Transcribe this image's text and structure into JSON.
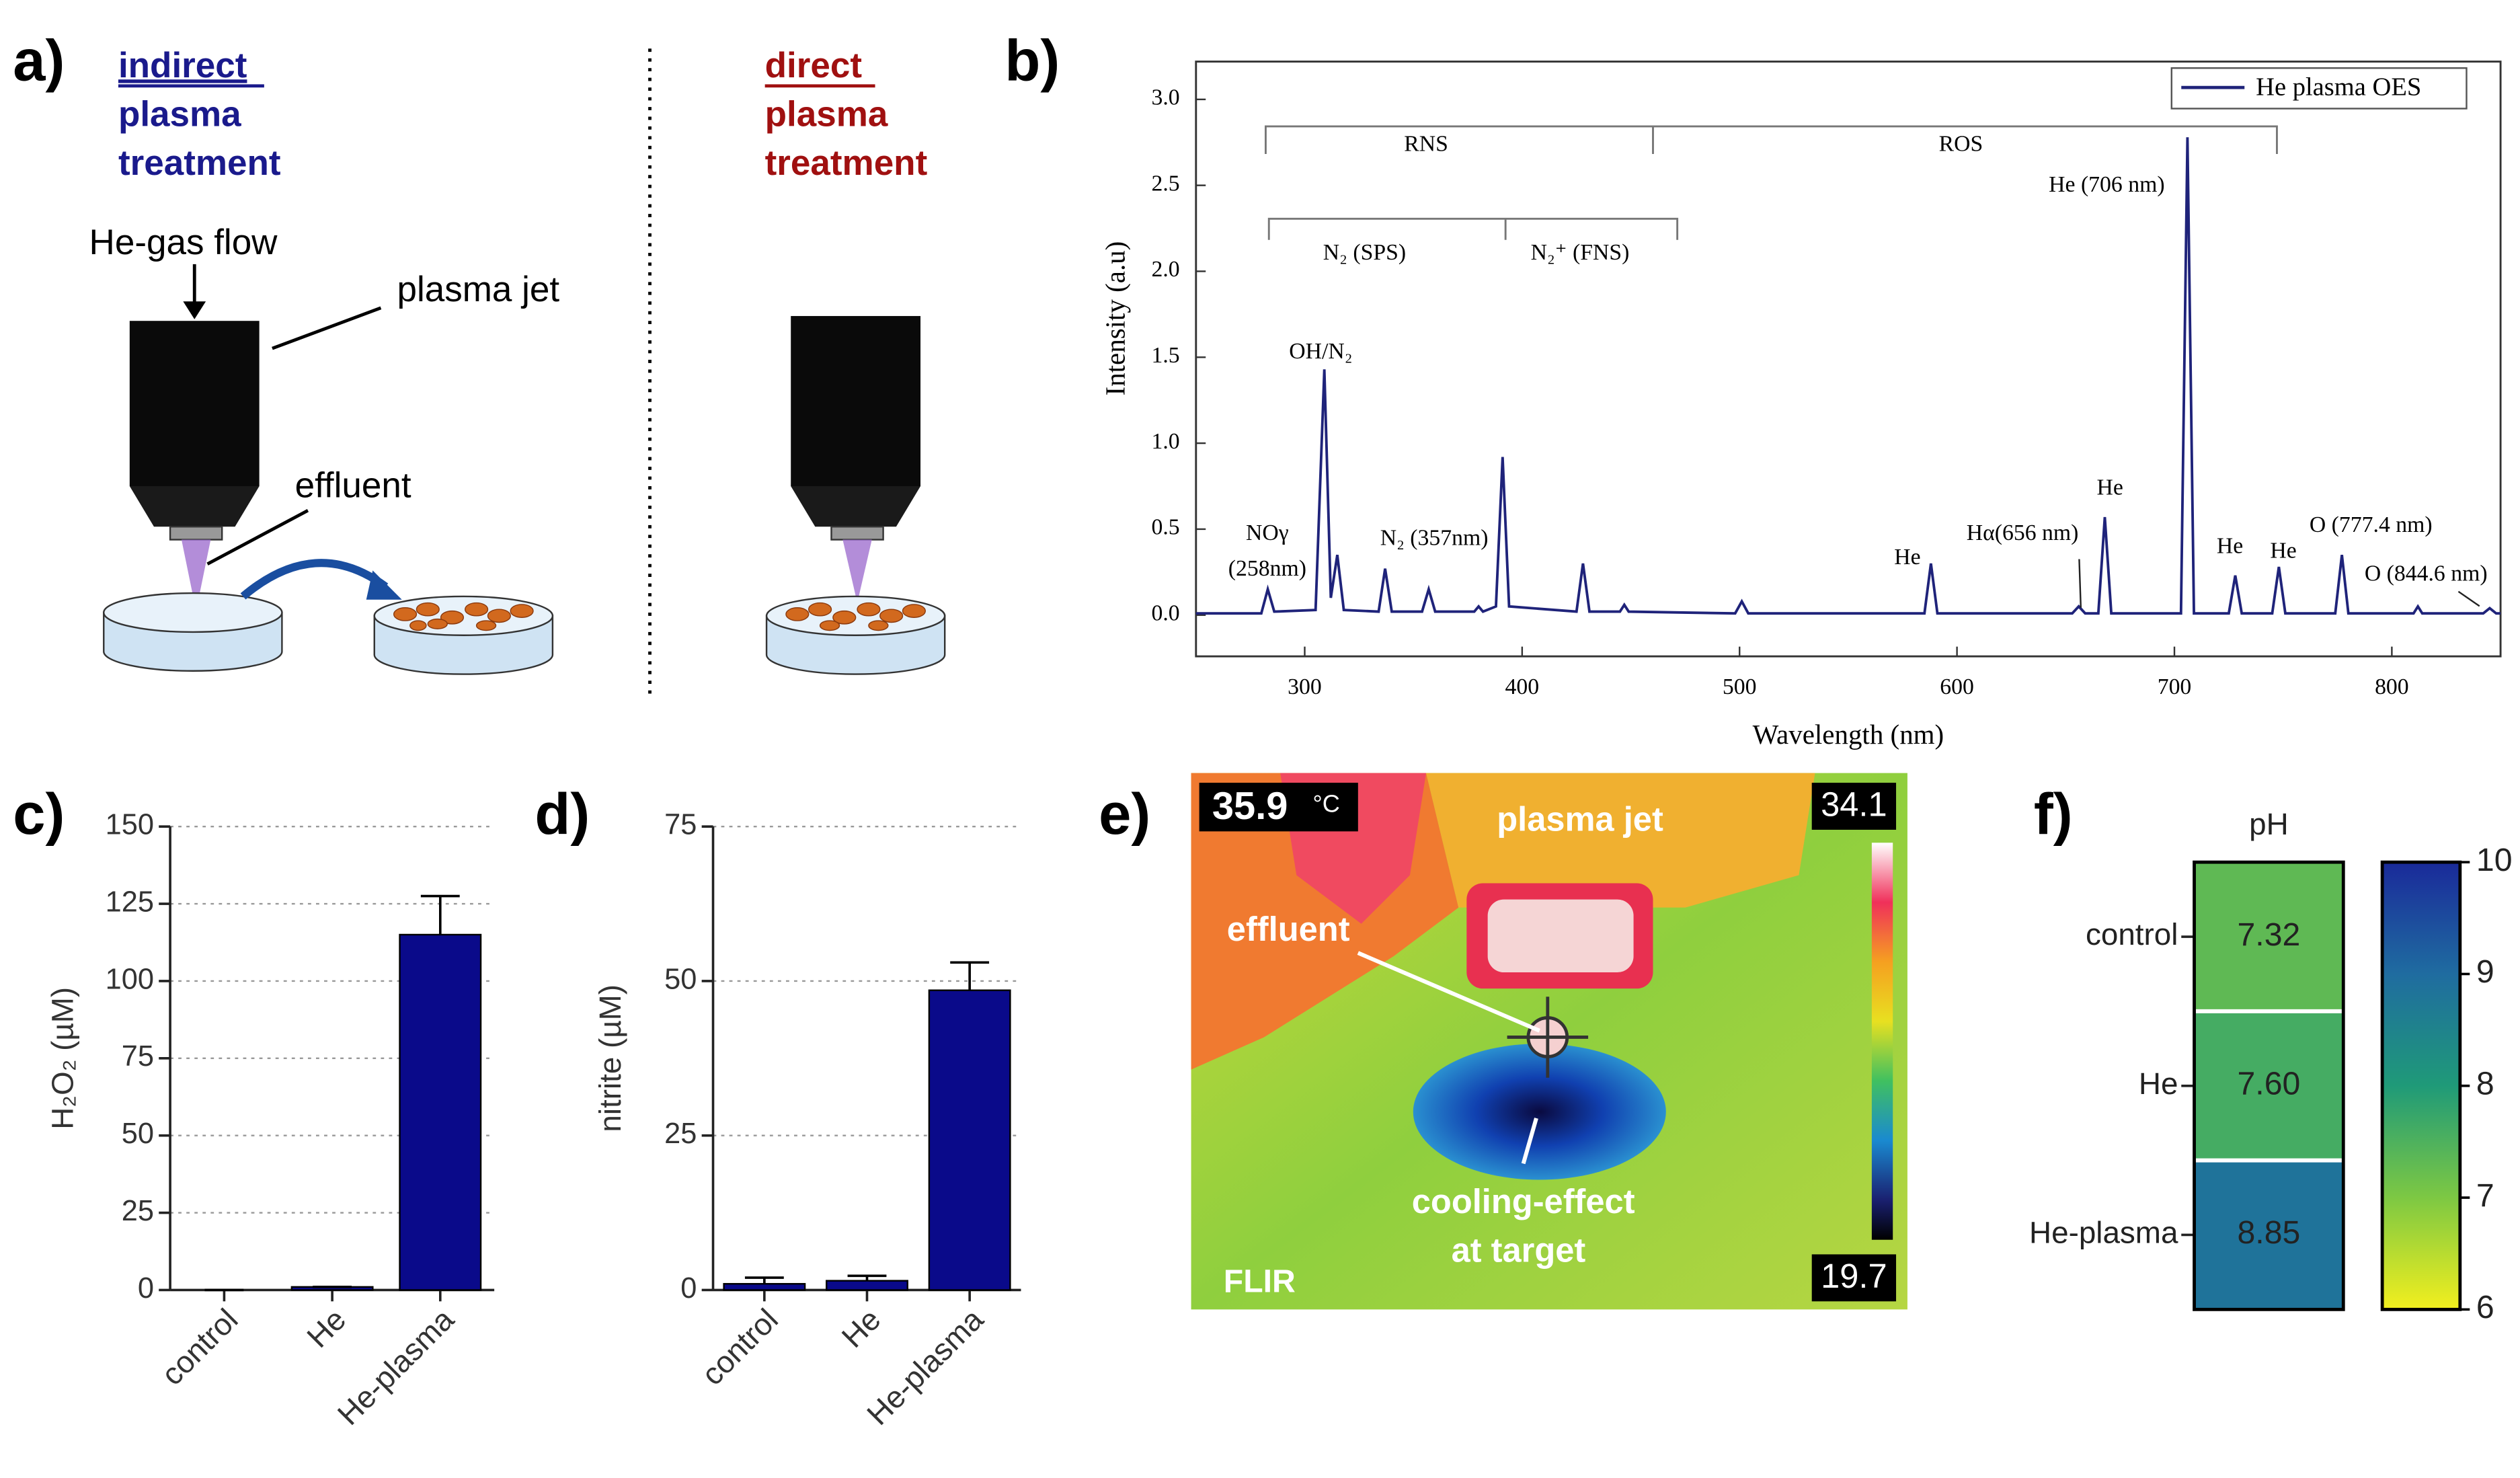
{
  "panel_labels": [
    "a)",
    "b)",
    "c)",
    "d)",
    "e)",
    "f)"
  ],
  "diagram": {
    "indirect": [
      "indirect",
      "plasma",
      "treatment"
    ],
    "direct": [
      "direct",
      "plasma",
      "treatment"
    ],
    "gas_flow": "He-gas flow",
    "jet": "plasma jet",
    "effluent": "effluent"
  },
  "thermal": {
    "temperature": "35.9",
    "unit": "°C",
    "jet": "plasma jet",
    "scale_max": "34.1",
    "scale_min": "19.7",
    "effluent": "effluent",
    "cooling": [
      "cooling-effect",
      "at target"
    ],
    "brand": "FLIR"
  },
  "chart_data": [
    {
      "type": "line",
      "xlabel": "Wavelength (nm)",
      "ylabel": "Intensity (a.u)",
      "legend": "top-right",
      "xlim": [
        250,
        850
      ],
      "ylim": [
        -0.24,
        3.22
      ],
      "xticks": [
        300,
        400,
        500,
        600,
        700,
        800
      ],
      "yticks": [
        {
          "value": 0,
          "label": "0.0"
        },
        0.5,
        {
          "value": 1,
          "label": "1.0"
        },
        1.5,
        {
          "value": 2,
          "label": "2.0"
        },
        2.5,
        {
          "value": 3,
          "label": "3.0"
        }
      ],
      "x": [
        250,
        280,
        283,
        286,
        305,
        309,
        312,
        315,
        318,
        334,
        337,
        340,
        354,
        357,
        360,
        378,
        380,
        382,
        388,
        391,
        394,
        425,
        428,
        431,
        445,
        447,
        449,
        498,
        501,
        504,
        585,
        588,
        591,
        653,
        656,
        659,
        665,
        668,
        671,
        703,
        706,
        709,
        725,
        728,
        731,
        745,
        748,
        751,
        774,
        777,
        780,
        810,
        812,
        814,
        842,
        845,
        848,
        850
      ],
      "series": [
        {
          "name": "He plasma OES",
          "color": "#1f237a",
          "values": [
            0.01,
            0.01,
            0.15,
            0.02,
            0.03,
            1.43,
            0.1,
            0.35,
            0.03,
            0.02,
            0.27,
            0.02,
            0.02,
            0.15,
            0.02,
            0.02,
            0.05,
            0.02,
            0.05,
            0.92,
            0.05,
            0.02,
            0.3,
            0.02,
            0.02,
            0.06,
            0.02,
            0.01,
            0.08,
            0.01,
            0.01,
            0.3,
            0.01,
            0.01,
            0.05,
            0.01,
            0.01,
            0.57,
            0.01,
            0.01,
            2.78,
            0.01,
            0.01,
            0.23,
            0.01,
            0.01,
            0.28,
            0.01,
            0.01,
            0.35,
            0.01,
            0.01,
            0.05,
            0.01,
            0.01,
            0.04,
            0.01,
            0.01
          ]
        }
      ],
      "annotations": [
        "NOγ",
        "(258nm)",
        "OH/N₂",
        "N₂ (357nm)",
        "He",
        "Hα(656 nm)",
        "He (706 nm)",
        "He",
        "He",
        "He",
        "O (777.4 nm)",
        "O (844.6 nm)"
      ],
      "brackets": [
        "RNS",
        "ROS",
        "N₂ (SPS)",
        "N₂⁺ (FNS)"
      ]
    },
    {
      "type": "bar",
      "ylabel": "H₂O₂ (µM)",
      "categories": [
        "control",
        "He",
        "He-plasma"
      ],
      "values": [
        0,
        1,
        115
      ],
      "errors": [
        0,
        0,
        12.5
      ],
      "color": "#0a0a8a",
      "ylim": [
        0,
        150
      ],
      "yticks": [
        0,
        25,
        50,
        75,
        100,
        125,
        150
      ],
      "grid": true
    },
    {
      "type": "bar",
      "ylabel": "nitrite (µM)",
      "categories": [
        "control",
        "He",
        "He-plasma"
      ],
      "values": [
        1,
        1.5,
        48.5
      ],
      "errors": [
        1,
        0.8,
        4.5
      ],
      "color": "#0a0a8a",
      "ylim": [
        0,
        75
      ],
      "yticks": [
        0,
        25,
        50,
        75
      ],
      "grid": true
    },
    {
      "type": "heatmap",
      "title": "pH",
      "categories": [
        "control",
        "He",
        "He-plasma"
      ],
      "values": [
        7.32,
        7.6,
        8.85
      ],
      "value_labels": [
        "7.32",
        "7.60",
        "8.85"
      ],
      "colorscale": [
        "#f2ef1e",
        "#7dc843",
        "#1f9a78",
        "#1f6ca0",
        "#1a2a9a"
      ],
      "clim": [
        6,
        10
      ],
      "cticks": [
        6,
        7,
        8,
        9,
        10
      ]
    }
  ]
}
